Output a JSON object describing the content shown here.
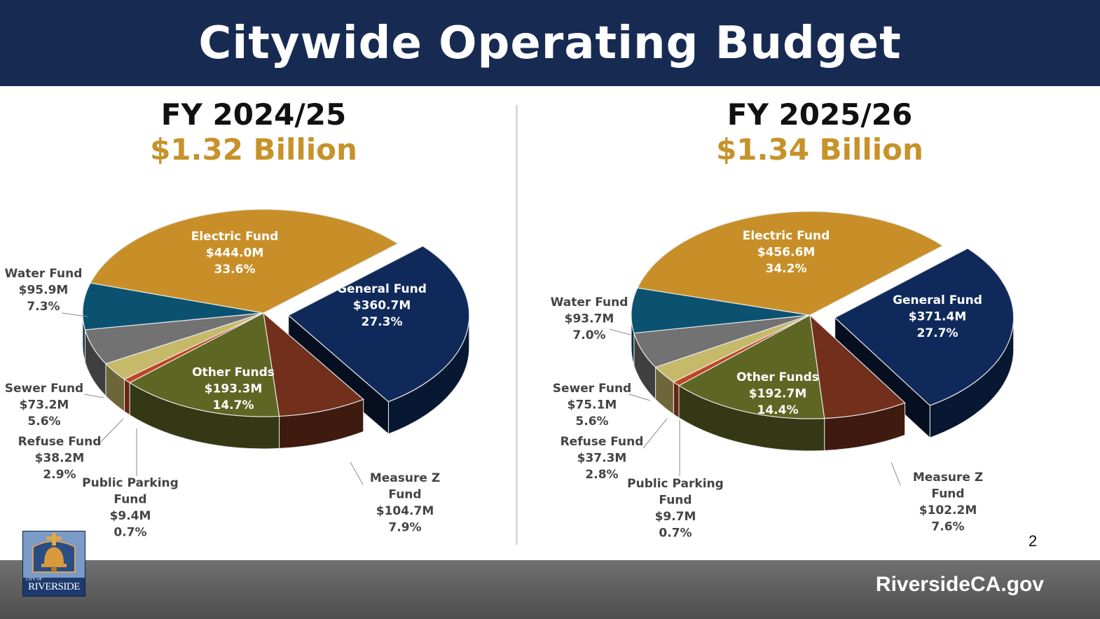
{
  "title": "Citywide Operating Budget",
  "page_number": "2",
  "website": "RiversideCA.gov",
  "logo": {
    "line1": "CITY OF",
    "line2": "RIVERSIDE"
  },
  "chart_data": [
    {
      "type": "pie",
      "title": "FY 2024/25",
      "subtitle": "$1.32 Billion",
      "slices": [
        {
          "name": "General Fund",
          "value_text": "$360.7M",
          "percent_text": "27.3%",
          "value": 360.7,
          "percent": 27.3,
          "color": "#0f2a5a",
          "exploded": true,
          "inside": true,
          "label_lines": [
            "General Fund"
          ]
        },
        {
          "name": "Measure Z Fund",
          "value_text": "$104.7M",
          "percent_text": "7.9%",
          "value": 104.7,
          "percent": 7.9,
          "color": "#722f1c",
          "label_lines": [
            "Measure Z",
            "Fund"
          ]
        },
        {
          "name": "Other Funds",
          "value_text": "$193.3M",
          "percent_text": "14.7%",
          "value": 193.3,
          "percent": 14.7,
          "color": "#5e6624",
          "inside": true,
          "label_lines": [
            "Other Funds"
          ]
        },
        {
          "name": "Public Parking Fund",
          "value_text": "$9.4M",
          "percent_text": "0.7%",
          "value": 9.4,
          "percent": 0.7,
          "color": "#bf4421",
          "label_lines": [
            "Public Parking",
            "Fund"
          ]
        },
        {
          "name": "Refuse Fund",
          "value_text": "$38.2M",
          "percent_text": "2.9%",
          "value": 38.2,
          "percent": 2.9,
          "color": "#c7b96a",
          "label_lines": [
            "Refuse Fund"
          ]
        },
        {
          "name": "Sewer Fund",
          "value_text": "$73.2M",
          "percent_text": "5.6%",
          "value": 73.2,
          "percent": 5.6,
          "color": "#727272",
          "label_lines": [
            "Sewer Fund"
          ]
        },
        {
          "name": "Water Fund",
          "value_text": "$95.9M",
          "percent_text": "7.3%",
          "value": 95.9,
          "percent": 7.3,
          "color": "#0b5270",
          "label_lines": [
            "Water Fund"
          ]
        },
        {
          "name": "Electric Fund",
          "value_text": "$444.0M",
          "percent_text": "33.6%",
          "value": 444.0,
          "percent": 33.6,
          "color": "#c88f29",
          "inside": true,
          "label_lines": [
            "Electric Fund"
          ]
        }
      ]
    },
    {
      "type": "pie",
      "title": "FY 2025/26",
      "subtitle": "$1.34 Billion",
      "slices": [
        {
          "name": "General Fund",
          "value_text": "$371.4M",
          "percent_text": "27.7%",
          "value": 371.4,
          "percent": 27.7,
          "color": "#0f2a5a",
          "exploded": true,
          "inside": true,
          "label_lines": [
            "General Fund"
          ]
        },
        {
          "name": "Measure Z Fund",
          "value_text": "$102.2M",
          "percent_text": "7.6%",
          "value": 102.2,
          "percent": 7.6,
          "color": "#722f1c",
          "label_lines": [
            "Measure Z",
            "Fund"
          ]
        },
        {
          "name": "Other Funds",
          "value_text": "$192.7M",
          "percent_text": "14.4%",
          "value": 192.7,
          "percent": 14.4,
          "color": "#5e6624",
          "inside": true,
          "label_lines": [
            "Other Funds"
          ]
        },
        {
          "name": "Public Parking Fund",
          "value_text": "$9.7M",
          "percent_text": "0.7%",
          "value": 9.7,
          "percent": 0.7,
          "color": "#bf4421",
          "label_lines": [
            "Public Parking",
            "Fund"
          ]
        },
        {
          "name": "Refuse Fund",
          "value_text": "$37.3M",
          "percent_text": "2.8%",
          "value": 37.3,
          "percent": 2.8,
          "color": "#c7b96a",
          "label_lines": [
            "Refuse Fund"
          ]
        },
        {
          "name": "Sewer Fund",
          "value_text": "$75.1M",
          "percent_text": "5.6%",
          "value": 75.1,
          "percent": 5.6,
          "color": "#727272",
          "label_lines": [
            "Sewer Fund"
          ]
        },
        {
          "name": "Water Fund",
          "value_text": "$93.7M",
          "percent_text": "7.0%",
          "value": 93.7,
          "percent": 7.0,
          "color": "#0b5270",
          "label_lines": [
            "Water Fund"
          ]
        },
        {
          "name": "Electric Fund",
          "value_text": "$456.6M",
          "percent_text": "34.2%",
          "value": 456.6,
          "percent": 34.2,
          "color": "#c88f29",
          "inside": true,
          "label_lines": [
            "Electric Fund"
          ]
        }
      ]
    }
  ]
}
